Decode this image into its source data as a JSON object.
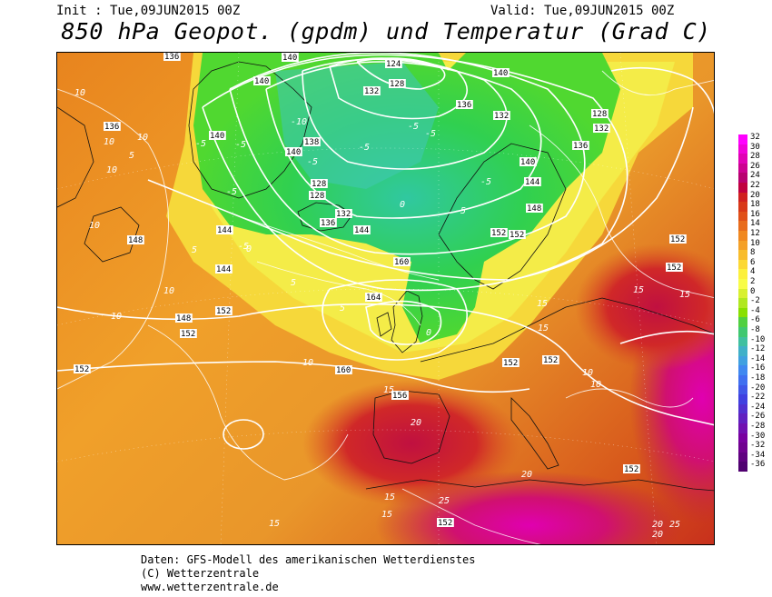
{
  "header": {
    "init": "Init : Tue,09JUN2015 00Z",
    "valid": "Valid: Tue,09JUN2015 00Z",
    "title": "850 hPa Geopot. (gpdm) und Temperatur (Grad C)"
  },
  "legend": {
    "values": [
      "32",
      "30",
      "28",
      "26",
      "24",
      "22",
      "20",
      "18",
      "16",
      "14",
      "12",
      "10",
      "8",
      "6",
      "4",
      "2",
      "0",
      "-2",
      "-4",
      "-6",
      "-8",
      "-10",
      "-12",
      "-14",
      "-16",
      "-18",
      "-20",
      "-22",
      "-24",
      "-26",
      "-28",
      "-30",
      "-32",
      "-34",
      "-36"
    ],
    "colors": [
      "#ff00ff",
      "#f000d8",
      "#e000b4",
      "#cc0090",
      "#b80070",
      "#c00040",
      "#d02020",
      "#d83818",
      "#e05018",
      "#e86c1c",
      "#f08820",
      "#f4a028",
      "#f8bc2c",
      "#fcd834",
      "#fcf03c",
      "#f8fc48",
      "#d8f030",
      "#b0e820",
      "#88e000",
      "#50d040",
      "#40c870",
      "#40c0a0",
      "#40b0c8",
      "#40a0e0",
      "#4088f0",
      "#4070f0",
      "#4058e8",
      "#4040e0",
      "#5030d0",
      "#6020c0",
      "#7010b0",
      "#7800a0",
      "#700090",
      "#600080",
      "#500070"
    ]
  },
  "geopotential_labels": [
    "136",
    "140",
    "140",
    "124",
    "128",
    "132",
    "136",
    "140",
    "132",
    "128",
    "132",
    "136",
    "140",
    "144",
    "148",
    "152",
    "152",
    "152",
    "136",
    "140",
    "138",
    "140",
    "128",
    "128",
    "132",
    "136",
    "144",
    "144",
    "144",
    "148",
    "148",
    "152",
    "156",
    "160",
    "164",
    "160",
    "156",
    "152",
    "152",
    "152",
    "152",
    "152",
    "152",
    "152"
  ],
  "temperature_labels": [
    "10",
    "10",
    "10",
    "10",
    "10",
    "10",
    "10",
    "5",
    "5",
    "-5",
    "-5",
    "-5",
    "-5",
    "-10",
    "-5",
    "-5",
    "-5",
    "-5",
    "-5",
    "-5",
    "0",
    "0",
    "0",
    "5",
    "5",
    "15",
    "15",
    "15",
    "15",
    "15",
    "15",
    "10",
    "10",
    "20",
    "20",
    "20",
    "25",
    "25",
    "15",
    "15",
    "10",
    "20"
  ],
  "footer": {
    "line1": "Daten: GFS-Modell des amerikanischen Wetterdienstes",
    "line2": "(C) Wetterzentrale",
    "line3": "www.wetterzentrale.de"
  }
}
